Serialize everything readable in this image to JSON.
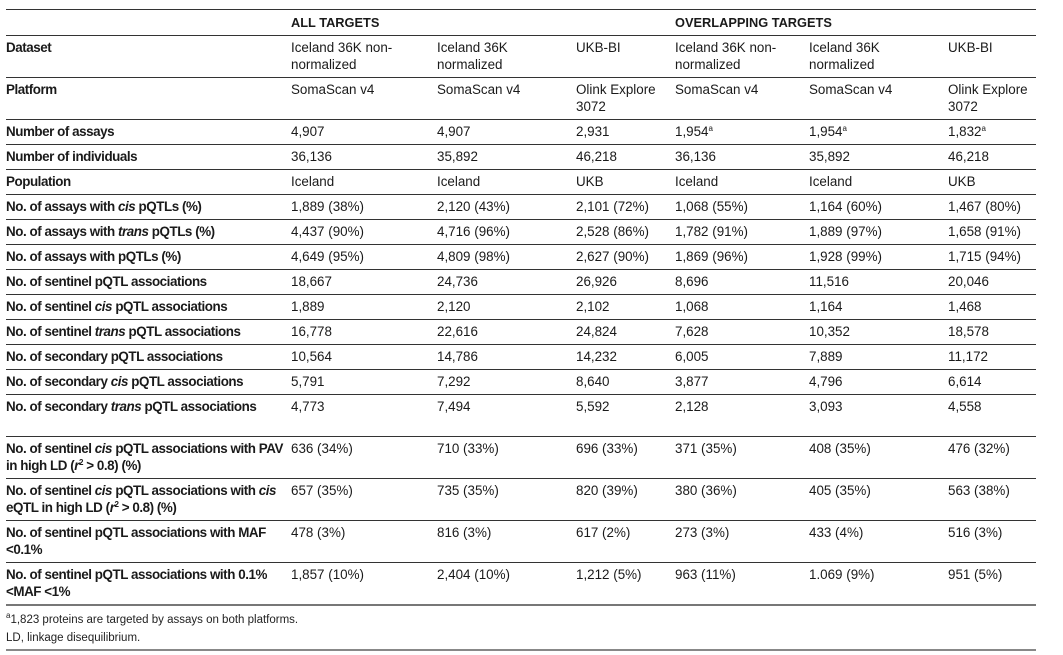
{
  "groups": {
    "all": "ALL TARGETS",
    "overlapping": "OVERLAPPING TARGETS"
  },
  "rows": [
    {
      "label": [
        {
          "t": "Dataset"
        }
      ],
      "values": [
        "Iceland 36K non-normalized",
        "Iceland 36K normalized",
        "UKB-BI",
        "Iceland 36K non-normalized",
        "Iceland 36K normalized",
        "UKB-BI"
      ],
      "tall": true
    },
    {
      "label": [
        {
          "t": "Platform"
        }
      ],
      "values": [
        "SomaScan v4",
        "SomaScan v4",
        "Olink Explore 3072",
        "SomaScan v4",
        "SomaScan v4",
        "Olink Explore 3072"
      ],
      "tall": true
    },
    {
      "label": [
        {
          "t": "Number of assays"
        }
      ],
      "values": [
        "4,907",
        "4,907",
        "2,931",
        {
          "v": "1,954",
          "sup": "a"
        },
        {
          "v": "1,954",
          "sup": "a"
        },
        {
          "v": "1,832",
          "sup": "a"
        }
      ]
    },
    {
      "label": [
        {
          "t": "Number of individuals"
        }
      ],
      "values": [
        "36,136",
        "35,892",
        "46,218",
        "36,136",
        "35,892",
        "46,218"
      ]
    },
    {
      "label": [
        {
          "t": "Population"
        }
      ],
      "values": [
        "Iceland",
        "Iceland",
        "UKB",
        "Iceland",
        "Iceland",
        "UKB"
      ]
    },
    {
      "label": [
        {
          "t": "No. of assays with "
        },
        {
          "t": "cis",
          "i": true
        },
        {
          "t": " pQTLs (%)"
        }
      ],
      "values": [
        "1,889 (38%)",
        "2,120 (43%)",
        "2,101 (72%)",
        "1,068 (55%)",
        "1,164 (60%)",
        "1,467 (80%)"
      ]
    },
    {
      "label": [
        {
          "t": "No. of assays with "
        },
        {
          "t": "trans",
          "i": true
        },
        {
          "t": " pQTLs (%)"
        }
      ],
      "values": [
        "4,437 (90%)",
        "4,716 (96%)",
        "2,528 (86%)",
        "1,782 (91%)",
        "1,889 (97%)",
        "1,658 (91%)"
      ]
    },
    {
      "label": [
        {
          "t": "No. of assays with pQTLs (%)"
        }
      ],
      "values": [
        "4,649 (95%)",
        "4,809 (98%)",
        "2,627 (90%)",
        "1,869 (96%)",
        "1,928 (99%)",
        "1,715 (94%)"
      ]
    },
    {
      "label": [
        {
          "t": "No. of sentinel pQTL associations"
        }
      ],
      "values": [
        "18,667",
        "24,736",
        "26,926",
        "8,696",
        "11,516",
        "20,046"
      ]
    },
    {
      "label": [
        {
          "t": "No. of sentinel "
        },
        {
          "t": "cis",
          "i": true
        },
        {
          "t": " pQTL associations"
        }
      ],
      "values": [
        "1,889",
        "2,120",
        "2,102",
        "1,068",
        "1,164",
        "1,468"
      ]
    },
    {
      "label": [
        {
          "t": "No. of sentinel "
        },
        {
          "t": "trans",
          "i": true
        },
        {
          "t": " pQTL associations"
        }
      ],
      "values": [
        "16,778",
        "22,616",
        "24,824",
        "7,628",
        "10,352",
        "18,578"
      ]
    },
    {
      "label": [
        {
          "t": "No. of secondary pQTL associations"
        }
      ],
      "values": [
        "10,564",
        "14,786",
        "14,232",
        "6,005",
        "7,889",
        "11,172"
      ]
    },
    {
      "label": [
        {
          "t": "No. of secondary "
        },
        {
          "t": "cis",
          "i": true
        },
        {
          "t": " pQTL associations"
        }
      ],
      "values": [
        "5,791",
        "7,292",
        "8,640",
        "3,877",
        "4,796",
        "6,614"
      ]
    },
    {
      "label": [
        {
          "t": "No. of secondary "
        },
        {
          "t": "trans",
          "i": true
        },
        {
          "t": " pQTL associations"
        }
      ],
      "values": [
        "4,773",
        "7,494",
        "5,592",
        "2,128",
        "3,093",
        "4,558"
      ],
      "tall": true
    },
    {
      "label": [
        {
          "t": "No. of sentinel "
        },
        {
          "t": "cis",
          "i": true
        },
        {
          "t": " pQTL associations with PAV in high LD ("
        },
        {
          "t": "r",
          "i": true
        },
        {
          "t": "2",
          "sup": true
        },
        {
          "t": " > 0.8) (%)"
        }
      ],
      "values": [
        "636 (34%)",
        "710 (33%)",
        "696 (33%)",
        "371 (35%)",
        "408 (35%)",
        "476 (32%)"
      ],
      "tall": true
    },
    {
      "label": [
        {
          "t": "No. of sentinel "
        },
        {
          "t": "cis",
          "i": true
        },
        {
          "t": " pQTL associations with "
        },
        {
          "t": "cis",
          "i": true
        },
        {
          "t": " eQTL in high LD ("
        },
        {
          "t": "r",
          "i": true
        },
        {
          "t": "2",
          "sup": true
        },
        {
          "t": " > 0.8) (%)"
        }
      ],
      "values": [
        "657 (35%)",
        "735 (35%)",
        "820 (39%)",
        "380 (36%)",
        "405 (35%)",
        "563 (38%)"
      ],
      "tall": true
    },
    {
      "label": [
        {
          "t": "No. of sentinel pQTL associations with MAF <0.1%"
        }
      ],
      "values": [
        "478 (3%)",
        "816 (3%)",
        "617 (2%)",
        "273 (3%)",
        "433 (4%)",
        "516 (3%)"
      ],
      "tall": true
    },
    {
      "label": [
        {
          "t": "No. of sentinel pQTL associations with 0.1%<MAF <1%"
        }
      ],
      "values": [
        "1,857 (10%)",
        "2,404 (10%)",
        "1,212 (5%)",
        "963 (11%)",
        "1.069 (9%)",
        "951 (5%)"
      ],
      "tall": true
    }
  ],
  "footnotes": {
    "a_mark": "a",
    "a_text": "1,823 proteins are targeted by assays on both platforms.",
    "ld": "LD, linkage disequilibrium."
  }
}
